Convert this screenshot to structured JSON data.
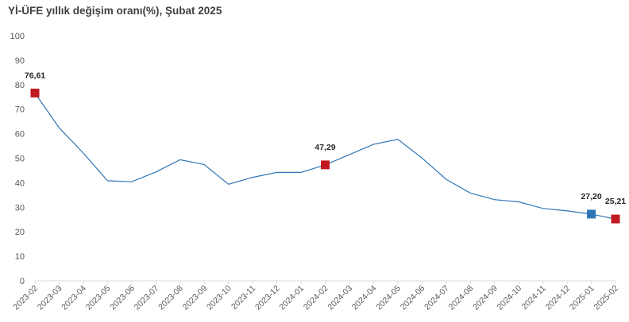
{
  "chart_title": "Yİ-ÜFE yıllık değişim oranı(%), Şubat 2025",
  "chart_data": {
    "type": "line",
    "title": "Yİ-ÜFE yıllık değişim oranı(%), Şubat 2025",
    "xlabel": "",
    "ylabel": "",
    "ylim": [
      0,
      100
    ],
    "yticks": [
      0,
      10,
      20,
      30,
      40,
      50,
      60,
      70,
      80,
      90,
      100
    ],
    "grid": false,
    "line_color": "#2e75b6",
    "categories": [
      "2023-02",
      "2023-03",
      "2023-04",
      "2023-05",
      "2023-06",
      "2023-07",
      "2023-08",
      "2023-09",
      "2023-10",
      "2023-11",
      "2023-12",
      "2024-01",
      "2024-02",
      "2024-03",
      "2024-04",
      "2024-05",
      "2024-06",
      "2024-07",
      "2024-08",
      "2024-09",
      "2024-10",
      "2024-11",
      "2024-12",
      "2025-01",
      "2025-02"
    ],
    "series": [
      {
        "values": [
          76.61,
          62.4,
          52.1,
          40.8,
          40.4,
          44.4,
          49.4,
          47.4,
          39.4,
          42.2,
          44.2,
          44.2,
          47.29,
          51.5,
          55.7,
          57.7,
          50.1,
          41.4,
          35.8,
          33.1,
          32.2,
          29.5,
          28.5,
          27.2,
          25.21
        ]
      }
    ],
    "markers": [
      {
        "index": 0,
        "label": "76,61",
        "color": "#c0191f"
      },
      {
        "index": 12,
        "label": "47,29",
        "color": "#c0191f"
      },
      {
        "index": 23,
        "label": "27,20",
        "color": "#2e75b6"
      },
      {
        "index": 24,
        "label": "25,21",
        "color": "#c0191f"
      }
    ]
  }
}
